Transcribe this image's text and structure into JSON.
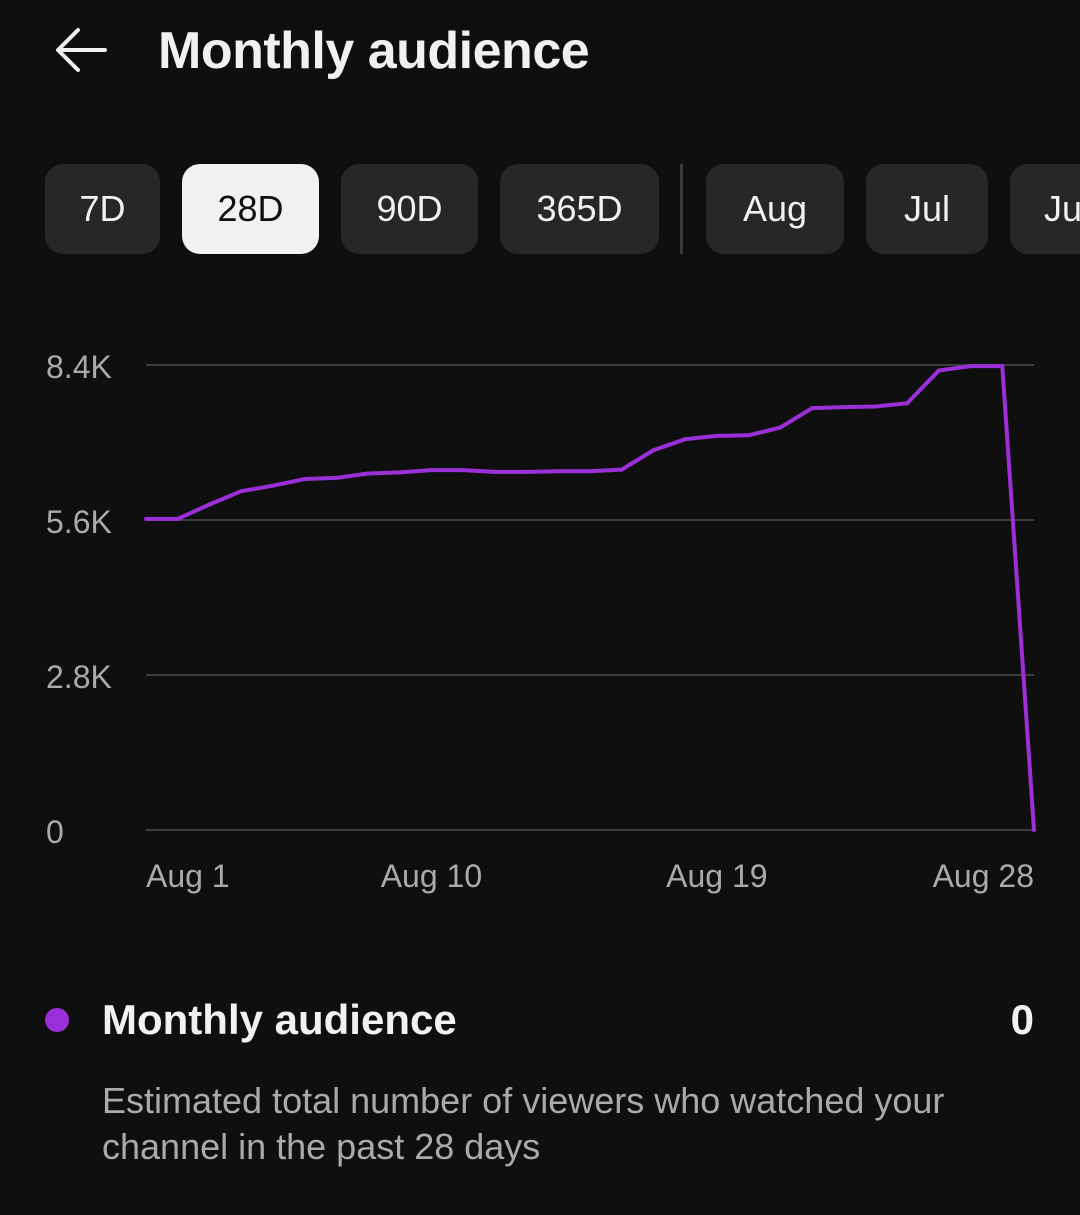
{
  "header": {
    "title": "Monthly audience",
    "back_icon": "arrow-left-icon"
  },
  "chips": [
    {
      "label": "7D",
      "selected": false
    },
    {
      "label": "28D",
      "selected": true
    },
    {
      "label": "90D",
      "selected": false
    },
    {
      "label": "365D",
      "selected": false
    },
    {
      "label": "Aug",
      "selected": false
    },
    {
      "label": "Jul",
      "selected": false
    },
    {
      "label": "Jun",
      "selected": false
    }
  ],
  "chart_data": {
    "type": "line",
    "ylim": [
      0,
      8400
    ],
    "yticks": [
      {
        "value": 8400,
        "label": "8.4K"
      },
      {
        "value": 5600,
        "label": "5.6K"
      },
      {
        "value": 2800,
        "label": "2.8K"
      },
      {
        "value": 0,
        "label": "0"
      }
    ],
    "xlim": [
      1,
      29
    ],
    "xticks": [
      {
        "value": 1,
        "label": "Aug 1"
      },
      {
        "value": 10,
        "label": "Aug 10"
      },
      {
        "value": 19,
        "label": "Aug 19"
      },
      {
        "value": 28,
        "label": "Aug 28"
      }
    ],
    "grid": true,
    "series": [
      {
        "color": "#9b30d9",
        "x": [
          1,
          2,
          3,
          4,
          5,
          6,
          7,
          8,
          9,
          10,
          11,
          12,
          13,
          14,
          15,
          16,
          17,
          18,
          19,
          20,
          21,
          22,
          23,
          24,
          25,
          26,
          27,
          28,
          29
        ],
        "y": [
          5620,
          5620,
          5880,
          6120,
          6220,
          6340,
          6360,
          6440,
          6460,
          6500,
          6500,
          6470,
          6470,
          6480,
          6480,
          6510,
          6860,
          7060,
          7120,
          7130,
          7270,
          7620,
          7640,
          7650,
          7710,
          8300,
          8380,
          8380,
          0
        ]
      }
    ]
  },
  "legend": {
    "label": "Monthly audience",
    "value": "0",
    "color": "#9b30d9"
  },
  "description": "Estimated total number of viewers who watched your channel in the past 28 days"
}
